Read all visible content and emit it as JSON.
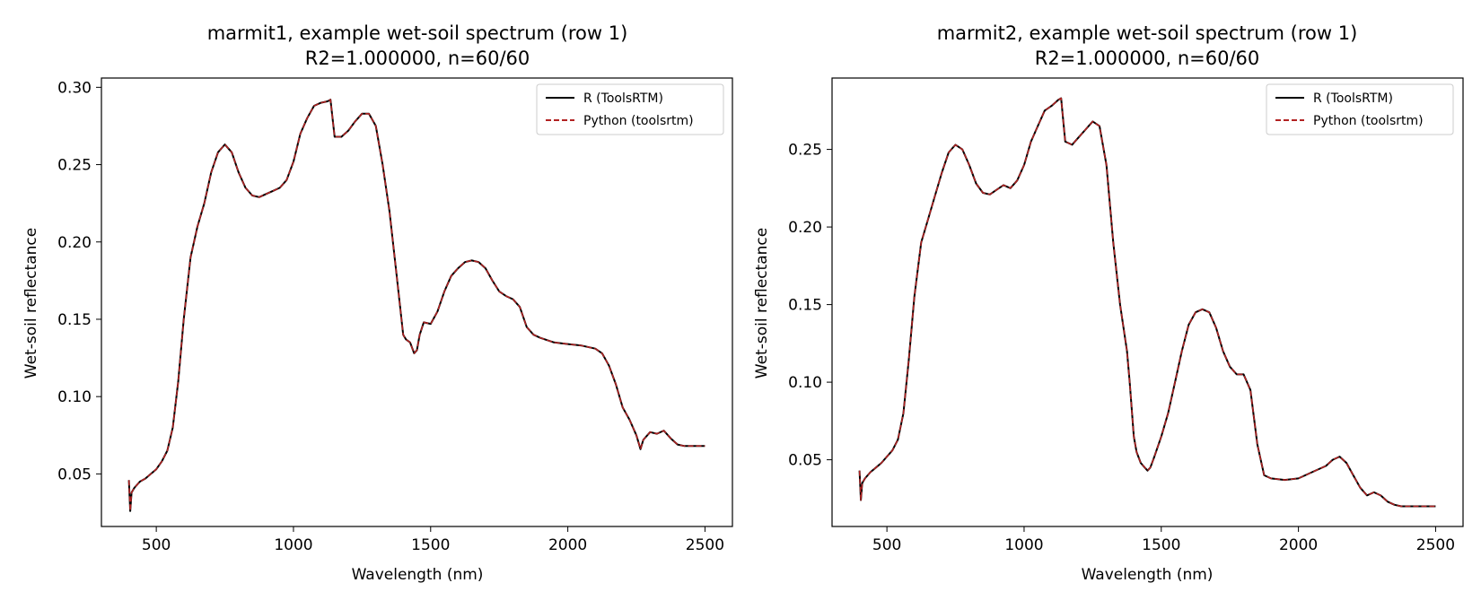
{
  "chart_data": [
    {
      "type": "line",
      "title": "marmit1, example wet-soil spectrum (row 1)",
      "subtitle": "R2=1.000000, n=60/60",
      "xlabel": "Wavelength (nm)",
      "ylabel": "Wet-soil reflectance",
      "xlim": [
        300,
        2600
      ],
      "ylim": [
        0.016,
        0.306
      ],
      "xticks": [
        "500",
        "1000",
        "1500",
        "2000",
        "2500"
      ],
      "yticks": [
        "0.05",
        "0.10",
        "0.15",
        "0.20",
        "0.25",
        "0.30"
      ],
      "legend": "top-right",
      "series": [
        {
          "name": "R (ToolsRTM)",
          "color": "#000000",
          "style": "solid"
        },
        {
          "name": "Python (toolsrtm)",
          "color": "#b22222",
          "style": "dashed"
        }
      ],
      "x": [
        400,
        405,
        410,
        420,
        440,
        460,
        480,
        500,
        520,
        540,
        560,
        580,
        600,
        625,
        650,
        675,
        700,
        725,
        750,
        775,
        800,
        825,
        850,
        875,
        900,
        925,
        950,
        975,
        1000,
        1025,
        1050,
        1075,
        1100,
        1125,
        1135,
        1150,
        1175,
        1200,
        1225,
        1250,
        1275,
        1300,
        1325,
        1350,
        1375,
        1400,
        1410,
        1425,
        1440,
        1450,
        1460,
        1475,
        1500,
        1525,
        1550,
        1575,
        1600,
        1625,
        1650,
        1675,
        1700,
        1725,
        1750,
        1775,
        1800,
        1825,
        1850,
        1875,
        1900,
        1950,
        2000,
        2050,
        2100,
        2125,
        2150,
        2175,
        2200,
        2225,
        2250,
        2265,
        2275,
        2300,
        2325,
        2350,
        2375,
        2400,
        2425,
        2450,
        2475,
        2500
      ],
      "y": [
        0.046,
        0.026,
        0.038,
        0.041,
        0.045,
        0.047,
        0.05,
        0.053,
        0.058,
        0.065,
        0.08,
        0.11,
        0.15,
        0.19,
        0.21,
        0.225,
        0.245,
        0.258,
        0.263,
        0.258,
        0.245,
        0.235,
        0.23,
        0.229,
        0.231,
        0.233,
        0.235,
        0.24,
        0.252,
        0.27,
        0.28,
        0.288,
        0.29,
        0.291,
        0.292,
        0.268,
        0.268,
        0.272,
        0.278,
        0.283,
        0.283,
        0.275,
        0.25,
        0.22,
        0.18,
        0.14,
        0.137,
        0.135,
        0.128,
        0.13,
        0.14,
        0.148,
        0.147,
        0.155,
        0.168,
        0.178,
        0.183,
        0.187,
        0.188,
        0.187,
        0.183,
        0.175,
        0.168,
        0.165,
        0.163,
        0.158,
        0.145,
        0.14,
        0.138,
        0.135,
        0.134,
        0.133,
        0.131,
        0.128,
        0.12,
        0.108,
        0.093,
        0.085,
        0.075,
        0.066,
        0.072,
        0.077,
        0.076,
        0.078,
        0.073,
        0.069,
        0.068,
        0.068,
        0.068,
        0.068
      ]
    },
    {
      "type": "line",
      "title": "marmit2, example wet-soil spectrum (row 1)",
      "subtitle": "R2=1.000000, n=60/60",
      "xlabel": "Wavelength (nm)",
      "ylabel": "Wet-soil reflectance",
      "xlim": [
        300,
        2600
      ],
      "ylim": [
        0.007,
        0.296
      ],
      "xticks": [
        "500",
        "1000",
        "1500",
        "2000",
        "2500"
      ],
      "yticks": [
        "0.05",
        "0.10",
        "0.15",
        "0.20",
        "0.25"
      ],
      "legend": "top-right",
      "series": [
        {
          "name": "R (ToolsRTM)",
          "color": "#000000",
          "style": "solid"
        },
        {
          "name": "Python (toolsrtm)",
          "color": "#b22222",
          "style": "dashed"
        }
      ],
      "x": [
        400,
        405,
        410,
        420,
        440,
        460,
        480,
        500,
        520,
        540,
        560,
        580,
        600,
        625,
        650,
        675,
        700,
        725,
        750,
        775,
        800,
        825,
        850,
        875,
        900,
        925,
        950,
        975,
        1000,
        1025,
        1050,
        1075,
        1100,
        1125,
        1135,
        1150,
        1175,
        1200,
        1225,
        1250,
        1275,
        1300,
        1325,
        1350,
        1375,
        1385,
        1400,
        1410,
        1425,
        1440,
        1450,
        1460,
        1475,
        1500,
        1525,
        1550,
        1575,
        1600,
        1625,
        1650,
        1675,
        1700,
        1725,
        1750,
        1775,
        1800,
        1825,
        1850,
        1875,
        1900,
        1950,
        2000,
        2050,
        2100,
        2125,
        2150,
        2175,
        2200,
        2225,
        2250,
        2275,
        2300,
        2325,
        2350,
        2375,
        2400,
        2425,
        2450,
        2475,
        2500
      ],
      "y": [
        0.043,
        0.024,
        0.035,
        0.038,
        0.042,
        0.045,
        0.048,
        0.052,
        0.056,
        0.063,
        0.08,
        0.115,
        0.155,
        0.19,
        0.205,
        0.22,
        0.235,
        0.248,
        0.253,
        0.25,
        0.24,
        0.228,
        0.222,
        0.221,
        0.224,
        0.227,
        0.225,
        0.23,
        0.24,
        0.255,
        0.265,
        0.275,
        0.278,
        0.282,
        0.283,
        0.255,
        0.253,
        0.258,
        0.263,
        0.268,
        0.265,
        0.24,
        0.19,
        0.15,
        0.12,
        0.1,
        0.065,
        0.055,
        0.048,
        0.045,
        0.043,
        0.045,
        0.052,
        0.065,
        0.08,
        0.1,
        0.12,
        0.137,
        0.145,
        0.147,
        0.145,
        0.135,
        0.12,
        0.11,
        0.105,
        0.105,
        0.095,
        0.06,
        0.04,
        0.038,
        0.037,
        0.038,
        0.042,
        0.046,
        0.05,
        0.052,
        0.048,
        0.04,
        0.032,
        0.027,
        0.029,
        0.027,
        0.023,
        0.021,
        0.02,
        0.02,
        0.02,
        0.02,
        0.02,
        0.02
      ]
    }
  ]
}
